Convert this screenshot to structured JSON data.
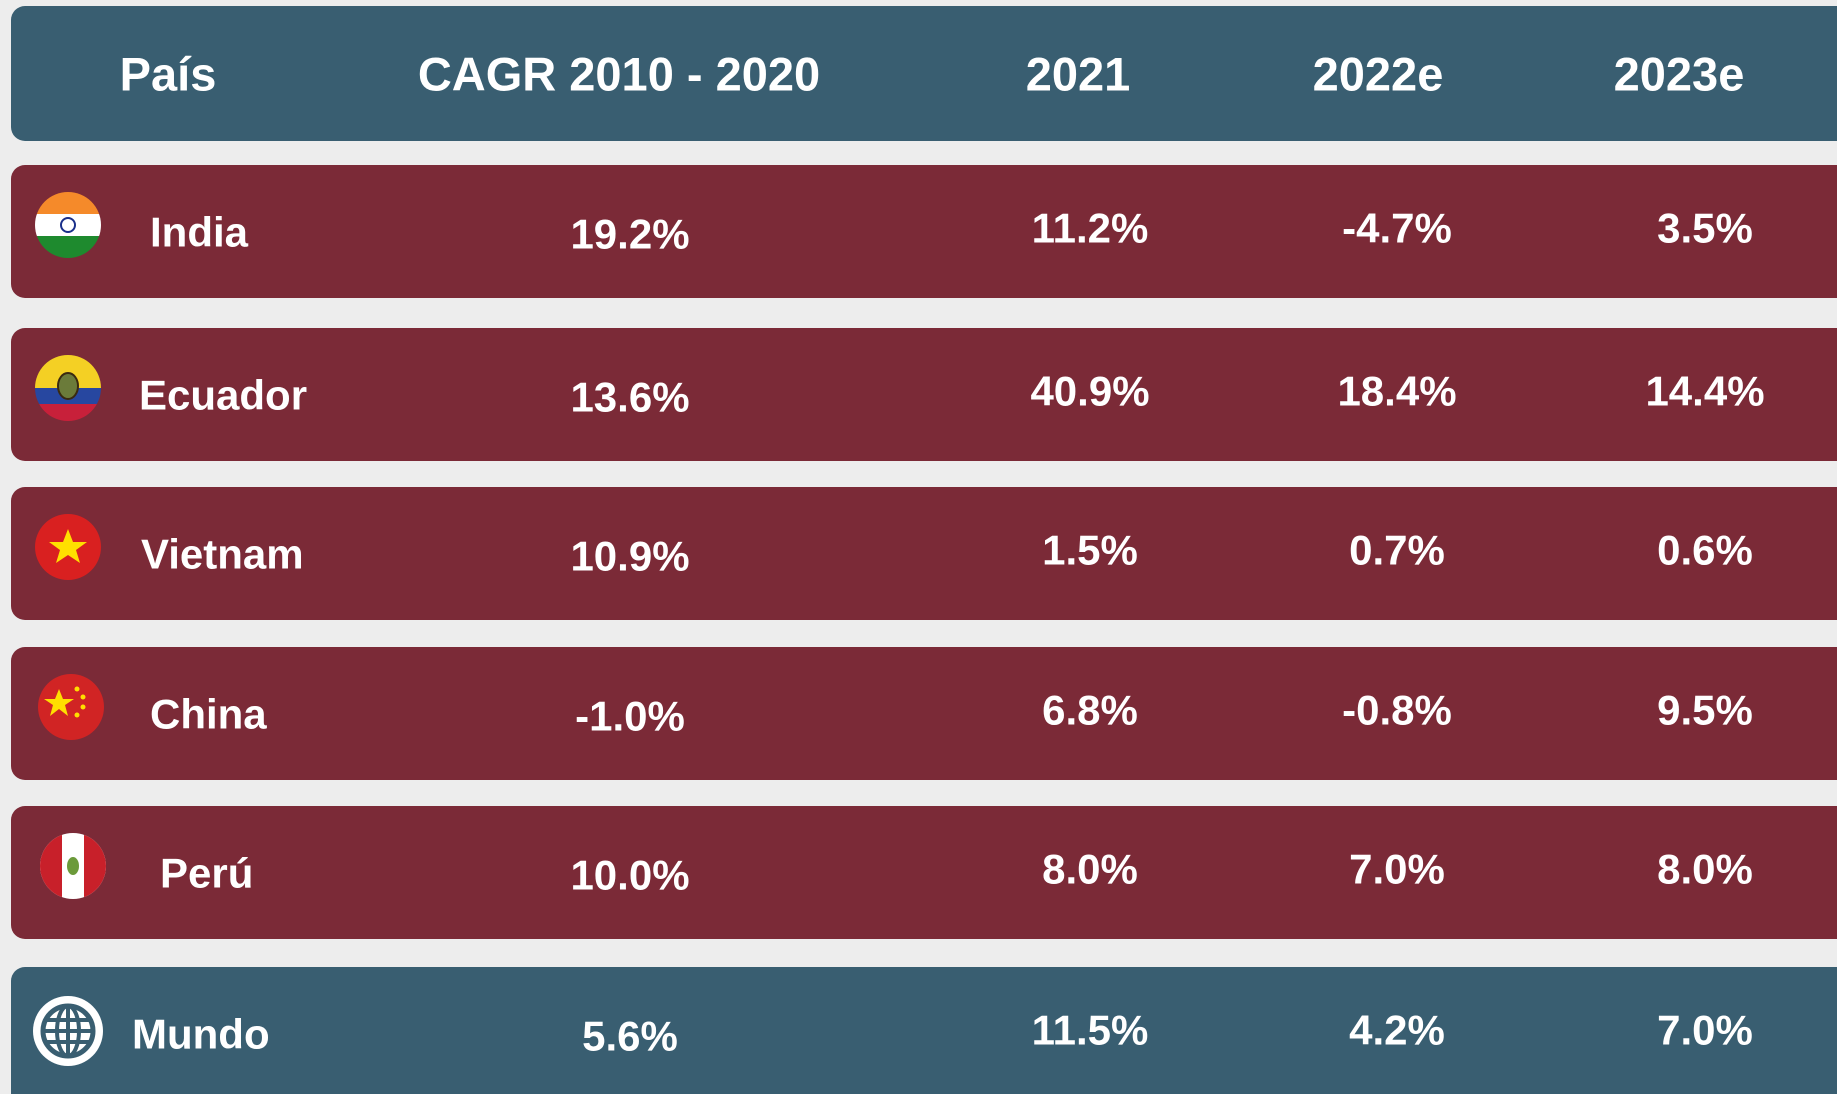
{
  "table": {
    "header": [
      "País",
      "CAGR 2010 - 2020",
      "2021",
      "2022e",
      "2023e"
    ],
    "rows": [
      [
        "India",
        "19.2%",
        "11.2%",
        "-4.7%",
        "3.5%"
      ],
      [
        "Ecuador",
        "13.6%",
        "40.9%",
        "18.4%",
        "14.4%"
      ],
      [
        "Vietnam",
        "10.9%",
        "1.5%",
        "0.7%",
        "0.6%"
      ],
      [
        "China",
        "-1.0%",
        "6.8%",
        "-0.8%",
        "9.5%"
      ],
      [
        "Perú",
        "10.0%",
        "8.0%",
        "7.0%",
        "8.0%"
      ],
      [
        "Mundo",
        "5.6%",
        "11.5%",
        "4.2%",
        "7.0%"
      ]
    ]
  }
}
